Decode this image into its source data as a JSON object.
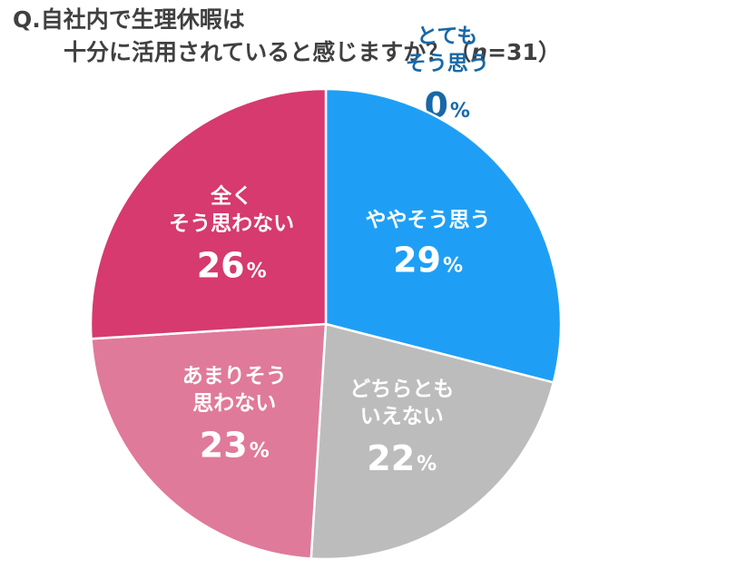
{
  "title": {
    "prefix": "Q.",
    "line1": "自社内で生理休暇は",
    "line2_text": "十分に活用されていると感じますか？（",
    "n_label": "n",
    "n_value": "=31）"
  },
  "chart_data": {
    "type": "pie",
    "title": "Q.自社内で生理休暇は十分に活用されていると感じますか？（n=31）",
    "n": 31,
    "unit": "%",
    "start_angle_deg": 0,
    "direction": "clockwise",
    "slices": [
      {
        "label": "とてもそう思う",
        "label_lines": [
          "とても",
          "そう思う"
        ],
        "value": 0,
        "color": "#1f6fad",
        "placement": "outside-top-right"
      },
      {
        "label": "ややそう思う",
        "label_lines": [
          "ややそう思う"
        ],
        "value": 29,
        "color": "#1e9ff5"
      },
      {
        "label": "どちらともいえない",
        "label_lines": [
          "どちらとも",
          "いえない"
        ],
        "value": 22,
        "color": "#bcbcbc"
      },
      {
        "label": "あまりそう思わない",
        "label_lines": [
          "あまりそう",
          "思わない"
        ],
        "value": 23,
        "color": "#e07a9a"
      },
      {
        "label": "全くそう思わない",
        "label_lines": [
          "全く",
          "そう思わない"
        ],
        "value": 26,
        "color": "#d63a6e"
      }
    ]
  }
}
